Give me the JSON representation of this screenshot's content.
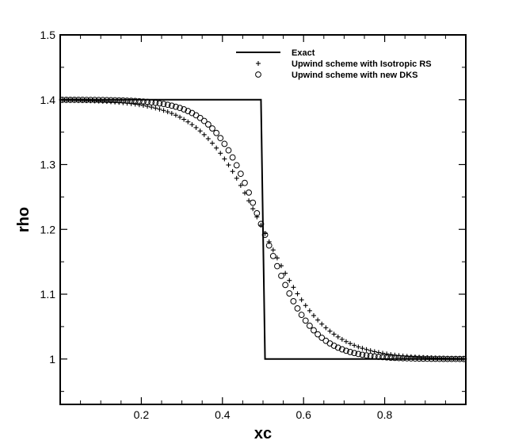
{
  "chart_data": {
    "type": "line",
    "title": "",
    "xlabel": "xc",
    "ylabel": "rho",
    "xlim": [
      0,
      1
    ],
    "ylim": [
      0.93,
      1.5
    ],
    "xticks": [
      0.2,
      0.4,
      0.6,
      0.8
    ],
    "xtick_labels": [
      "0.2",
      "0.4",
      "0.6",
      "0.8"
    ],
    "yticks": [
      1.0,
      1.1,
      1.2,
      1.3,
      1.4,
      1.5
    ],
    "ytick_labels": [
      "1",
      "1.1",
      "1.2",
      "1.3",
      "1.4",
      "1.5"
    ],
    "grid": false,
    "legend_position": "top-right",
    "legend": [
      {
        "label": "Exact",
        "marker": "line"
      },
      {
        "label": "Upwind scheme with Isotropic RS",
        "marker": "plus"
      },
      {
        "label": "Upwind scheme with new DKS",
        "marker": "circle"
      }
    ],
    "series": [
      {
        "name": "Exact",
        "style": "line",
        "x": [
          0.0,
          0.495,
          0.505,
          1.0
        ],
        "y": [
          1.4,
          1.4,
          1.0,
          1.0
        ]
      },
      {
        "name": "Upwind scheme with Isotropic RS",
        "style": "plus",
        "model": "logistic",
        "x_range": [
          0.005,
          0.995
        ],
        "step": 0.01,
        "rho_left": 1.4,
        "rho_right": 1.0,
        "center": 0.5,
        "width": 0.078
      },
      {
        "name": "Upwind scheme with new DKS",
        "style": "circle",
        "model": "logistic",
        "x_range": [
          0.005,
          0.995
        ],
        "step": 0.01,
        "rho_left": 1.4,
        "rho_right": 1.0,
        "center": 0.5,
        "width": 0.06
      }
    ]
  }
}
